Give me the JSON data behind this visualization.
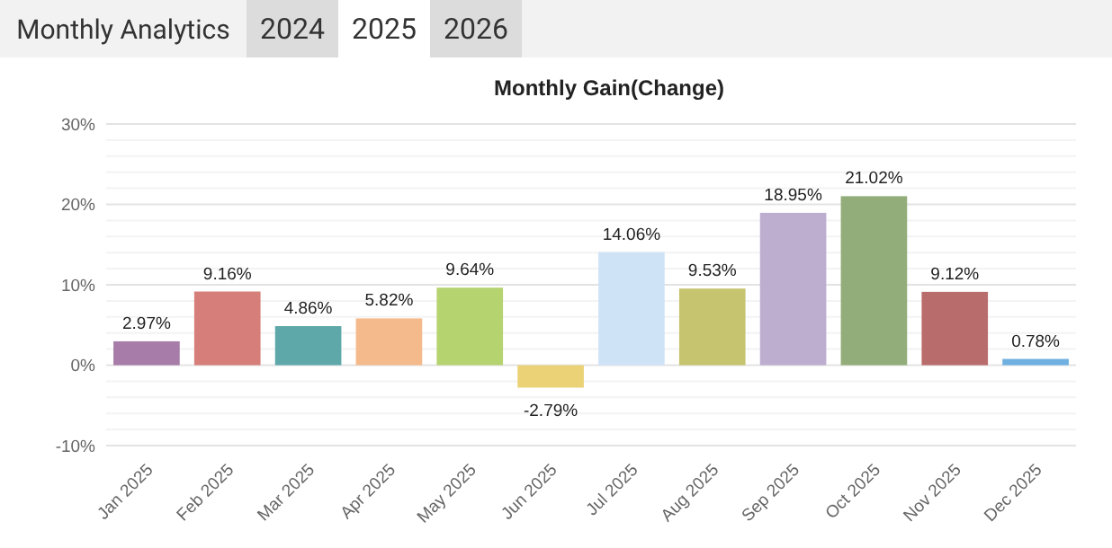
{
  "chart_data": {
    "type": "bar",
    "title": "Monthly Gain(Change)",
    "annotations": [
      "Monthly Analytics",
      "2024",
      "2025",
      "2026"
    ],
    "categories": [
      "Jan 2025",
      "Feb 2025",
      "Mar 2025",
      "Apr 2025",
      "May 2025",
      "Jun 2025",
      "Jul 2025",
      "Aug 2025",
      "Sep 2025",
      "Oct 2025",
      "Nov 2025",
      "Dec 2025"
    ],
    "values": [
      2.97,
      9.16,
      4.86,
      5.82,
      9.64,
      -2.79,
      14.06,
      9.53,
      18.95,
      21.02,
      9.12,
      0.78
    ],
    "value_labels": [
      "2.97%",
      "9.16%",
      "4.86%",
      "5.82%",
      "9.64%",
      "-2.79%",
      "14.06%",
      "9.53%",
      "18.95%",
      "21.02%",
      "9.12%",
      "0.78%"
    ],
    "colors": [
      "#a87ca8",
      "#d67f7a",
      "#5fa8aa",
      "#f5ba8c",
      "#b5d36f",
      "#ecd276",
      "#cfe3f7",
      "#c7c470",
      "#bdaed0",
      "#93ad7a",
      "#b96c6c",
      "#6fb0e0"
    ],
    "ylim": [
      -10,
      30
    ],
    "yticks": [
      {
        "value": -10,
        "label": "-10%"
      },
      {
        "value": -8,
        "label": null
      },
      {
        "value": -6,
        "label": null
      },
      {
        "value": -4,
        "label": null
      },
      {
        "value": -2,
        "label": null
      },
      {
        "value": 0,
        "label": "0%"
      },
      {
        "value": 2,
        "label": null
      },
      {
        "value": 4,
        "label": null
      },
      {
        "value": 6,
        "label": null
      },
      {
        "value": 8,
        "label": null
      },
      {
        "value": 10,
        "label": "10%"
      },
      {
        "value": 12,
        "label": null
      },
      {
        "value": 14,
        "label": null
      },
      {
        "value": 16,
        "label": null
      },
      {
        "value": 18,
        "label": null
      },
      {
        "value": 20,
        "label": "20%"
      },
      {
        "value": 22,
        "label": null
      },
      {
        "value": 24,
        "label": null
      },
      {
        "value": 26,
        "label": null
      },
      {
        "value": 28,
        "label": null
      },
      {
        "value": 30,
        "label": "30%"
      }
    ],
    "grid": true
  }
}
